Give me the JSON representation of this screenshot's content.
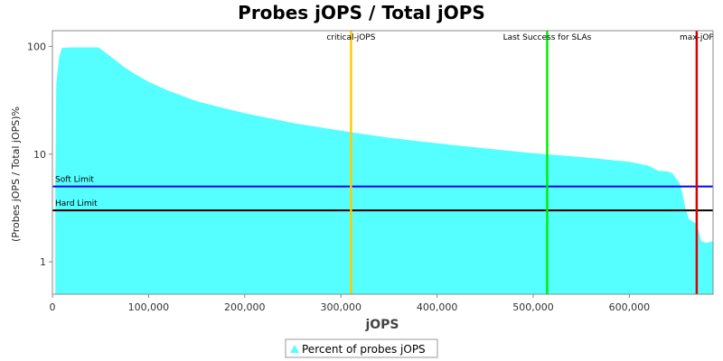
{
  "chart_data": {
    "type": "area",
    "title": "Probes jOPS / Total jOPS",
    "xlabel": "jOPS",
    "ylabel": "(Probes jOPS / Total jOPS)%",
    "xlim": [
      0,
      687000
    ],
    "ylim": [
      0.5,
      140
    ],
    "yscale": "log",
    "grid": false,
    "legend_position": "bottom-center",
    "x_ticks": [
      0,
      100000,
      200000,
      300000,
      400000,
      500000,
      600000
    ],
    "x_tick_labels": [
      "0",
      "100,000",
      "200,000",
      "300,000",
      "400,000",
      "500,000",
      "600,000"
    ],
    "y_ticks": [
      1,
      10,
      100
    ],
    "y_tick_labels": [
      "1",
      "10",
      "100"
    ],
    "series": [
      {
        "name": "Percent of probes jOPS",
        "color": "#55ffff",
        "x": [
          3000,
          4000,
          7000,
          10000,
          20000,
          30000,
          40000,
          48000,
          55000,
          65000,
          75000,
          85000,
          100000,
          120000,
          150000,
          180000,
          200000,
          250000,
          300000,
          350000,
          400000,
          450000,
          500000,
          550000,
          600000,
          620000,
          630000,
          640000,
          645000,
          648000,
          652000,
          655000,
          658000,
          662000,
          665000,
          670000,
          675000,
          680000,
          687000
        ],
        "y": [
          5,
          45,
          80,
          97,
          98,
          98,
          98,
          98,
          88,
          75,
          64,
          56,
          47,
          39,
          31,
          26.5,
          24,
          19.5,
          16.5,
          14.2,
          12.6,
          11.3,
          10.2,
          9.4,
          8.5,
          7.8,
          7.0,
          6.9,
          6.6,
          6.0,
          5.4,
          4.4,
          3.2,
          2.5,
          2.4,
          2.25,
          1.55,
          1.5,
          1.55
        ]
      }
    ],
    "vertical_lines": [
      {
        "label": "critical-jOPS",
        "x": 310500,
        "color": "#ffcc00"
      },
      {
        "label": "Last Success for SLAs",
        "x": 514500,
        "color": "#00ee00"
      },
      {
        "label": "max-jOP",
        "x": 670000,
        "color": "#dd0000"
      }
    ],
    "horizontal_lines": [
      {
        "label": "Soft Limit",
        "y": 5,
        "color": "#0000ff"
      },
      {
        "label": "Hard Limit",
        "y": 3,
        "color": "#000000"
      }
    ],
    "legend": {
      "label": "Percent of probes jOPS"
    }
  }
}
